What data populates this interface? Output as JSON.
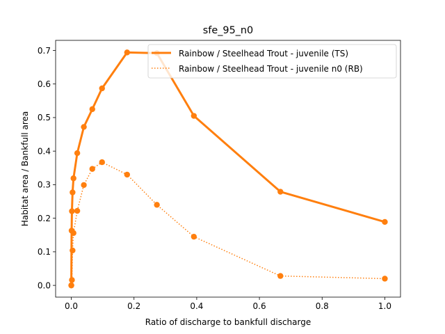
{
  "chart_data": {
    "type": "line",
    "title": "sfe_95_n0",
    "xlabel": "Ratio of discharge to bankfull discharge",
    "ylabel": "Habitat area / Bankfull area",
    "xlim": [
      -0.05,
      1.05
    ],
    "ylim": [
      -0.035,
      0.73
    ],
    "xticks": [
      0.0,
      0.2,
      0.4,
      0.6,
      0.8,
      1.0
    ],
    "xtick_labels": [
      "0.0",
      "0.2",
      "0.4",
      "0.6",
      "0.8",
      "1.0"
    ],
    "yticks": [
      0.0,
      0.1,
      0.2,
      0.3,
      0.4,
      0.5,
      0.6,
      0.7
    ],
    "ytick_labels": [
      "0.0",
      "0.1",
      "0.2",
      "0.3",
      "0.4",
      "0.5",
      "0.6",
      "0.7"
    ],
    "grid": false,
    "legend_position": "top-right",
    "series": [
      {
        "name": "Rainbow / Steelhead Trout - juvenile (TS)",
        "color": "#ff7f0e",
        "line_style": "solid",
        "x": [
          0.0,
          0.001,
          0.002,
          0.004,
          0.007,
          0.019,
          0.04,
          0.067,
          0.098,
          0.178,
          0.273,
          0.391,
          0.667,
          1.0
        ],
        "y": [
          0.0,
          0.163,
          0.221,
          0.277,
          0.319,
          0.394,
          0.472,
          0.525,
          0.587,
          0.694,
          0.692,
          0.505,
          0.279,
          0.189
        ]
      },
      {
        "name": "Rainbow / Steelhead Trout - juvenile n0 (RB)",
        "color": "#ff7f0e",
        "line_style": "dotted",
        "x": [
          0.0,
          0.002,
          0.004,
          0.007,
          0.019,
          0.04,
          0.067,
          0.098,
          0.178,
          0.273,
          0.391,
          0.667,
          1.0
        ],
        "y": [
          0.0,
          0.016,
          0.104,
          0.156,
          0.222,
          0.299,
          0.347,
          0.367,
          0.33,
          0.24,
          0.145,
          0.028,
          0.02
        ]
      }
    ]
  }
}
